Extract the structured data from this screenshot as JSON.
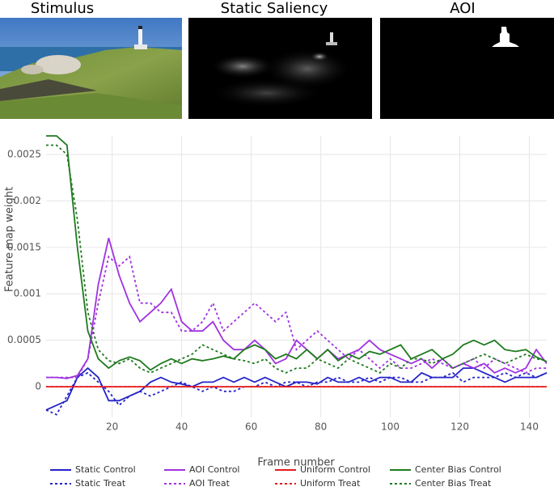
{
  "panels": [
    {
      "title": "Stimulus"
    },
    {
      "title": "Static Saliency"
    },
    {
      "title": "AOI"
    }
  ],
  "chart_data": {
    "type": "line",
    "x_label": "Frame number",
    "y_label": "Feature map weight",
    "xlim": [
      1,
      145
    ],
    "ylim": [
      -0.00033,
      0.0027
    ],
    "xticks": [
      20,
      40,
      60,
      80,
      100,
      120,
      140
    ],
    "yticks": [
      0,
      0.0005,
      0.001,
      0.0015,
      0.002,
      0.0025
    ],
    "grid": true,
    "x": [
      1,
      4,
      7,
      10,
      13,
      16,
      19,
      22,
      25,
      28,
      31,
      34,
      37,
      40,
      43,
      46,
      49,
      52,
      55,
      58,
      61,
      64,
      67,
      70,
      73,
      76,
      79,
      82,
      85,
      88,
      91,
      94,
      97,
      100,
      103,
      106,
      109,
      112,
      115,
      118,
      121,
      124,
      127,
      130,
      133,
      136,
      139,
      142,
      145
    ],
    "series": [
      {
        "name": "Static Control",
        "color": "#2424c8",
        "style": "solid",
        "values": [
          -0.00025,
          -0.0002,
          -0.00015,
          0.0001,
          0.0002,
          0.0001,
          -0.00015,
          -0.00015,
          -0.0001,
          -5e-05,
          5e-05,
          0.0001,
          5e-05,
          3e-05,
          0,
          5e-05,
          5e-05,
          0.0001,
          5e-05,
          0.0001,
          5e-05,
          0.0001,
          5e-05,
          0,
          5e-05,
          5e-05,
          3e-05,
          0.0001,
          5e-05,
          5e-05,
          0.0001,
          5e-05,
          0.0001,
          0.0001,
          5e-05,
          5e-05,
          0.00015,
          0.0001,
          0.0001,
          0.0001,
          0.0002,
          0.0002,
          0.00015,
          0.0001,
          5e-05,
          0.0001,
          0.0001,
          0.0001,
          0.00015
        ]
      },
      {
        "name": "Static Treat",
        "color": "#2424c8",
        "style": "dotted",
        "values": [
          -0.00025,
          -0.0003,
          -0.0001,
          0.0001,
          0.00015,
          5e-05,
          -5e-05,
          -0.0002,
          -0.0001,
          -5e-05,
          -0.0001,
          -5e-05,
          0,
          5e-05,
          0,
          -5e-05,
          0,
          -5e-05,
          -5e-05,
          0,
          0,
          5e-05,
          0,
          5e-05,
          5e-05,
          0,
          5e-05,
          5e-05,
          0.0001,
          5e-05,
          5e-05,
          0.0001,
          5e-05,
          0.0001,
          0.0001,
          5e-05,
          5e-05,
          0.0001,
          0.0001,
          0.00015,
          5e-05,
          0.0001,
          0.0001,
          0.0001,
          0.00015,
          0.0001,
          0.00015,
          0.0001,
          0.00015
        ]
      },
      {
        "name": "AOI Control",
        "color": "#a032e0",
        "style": "solid",
        "values": [
          0.0001,
          0.0001,
          9e-05,
          0.00012,
          0.0003,
          0.0011,
          0.0016,
          0.0012,
          0.0009,
          0.0007,
          0.0008,
          0.0009,
          0.00105,
          0.0007,
          0.0006,
          0.0006,
          0.0007,
          0.0005,
          0.0004,
          0.0004,
          0.0005,
          0.0004,
          0.00025,
          0.0003,
          0.0005,
          0.0004,
          0.0003,
          0.0004,
          0.0003,
          0.00035,
          0.0004,
          0.0005,
          0.0004,
          0.00035,
          0.0003,
          0.00025,
          0.0003,
          0.0002,
          0.0003,
          0.0002,
          0.00025,
          0.0002,
          0.00025,
          0.00015,
          0.0002,
          0.00015,
          0.0002,
          0.0004,
          0.00025
        ]
      },
      {
        "name": "AOI Treat",
        "color": "#a032e0",
        "style": "dotted",
        "values": [
          0.0001,
          0.0001,
          0.0001,
          0.0001,
          0.0003,
          0.0009,
          0.0014,
          0.0013,
          0.0014,
          0.0009,
          0.0009,
          0.0008,
          0.0008,
          0.0006,
          0.0006,
          0.0007,
          0.0009,
          0.0006,
          0.0007,
          0.0008,
          0.0009,
          0.0008,
          0.0007,
          0.0008,
          0.0004,
          0.0005,
          0.0006,
          0.0005,
          0.0004,
          0.0003,
          0.0004,
          0.0003,
          0.0002,
          0.0003,
          0.0002,
          0.0002,
          0.00025,
          0.0003,
          0.00025,
          0.0002,
          0.00025,
          0.0003,
          0.0002,
          0.0003,
          0.00025,
          0.0002,
          0.00015,
          0.0002,
          0.0002
        ]
      },
      {
        "name": "Uniform Control",
        "color": "#e41a1c",
        "style": "solid",
        "values": [
          0,
          0,
          0,
          0,
          0,
          0,
          0,
          0,
          0,
          0,
          0,
          0,
          0,
          0,
          0,
          0,
          0,
          0,
          0,
          0,
          0,
          0,
          0,
          0,
          0,
          0,
          0,
          0,
          0,
          0,
          0,
          0,
          0,
          0,
          0,
          0,
          0,
          0,
          0,
          0,
          0,
          0,
          0,
          0,
          0,
          0,
          0,
          0,
          0
        ]
      },
      {
        "name": "Uniform Treat",
        "color": "#e41a1c",
        "style": "dotted",
        "values": [
          0,
          0,
          0,
          0,
          0,
          0,
          0,
          0,
          0,
          0,
          0,
          0,
          0,
          0,
          0,
          0,
          0,
          0,
          0,
          0,
          0,
          0,
          0,
          0,
          0,
          0,
          0,
          0,
          0,
          0,
          0,
          0,
          0,
          0,
          0,
          0,
          0,
          0,
          0,
          0,
          0,
          0,
          0,
          0,
          0,
          0,
          0,
          0,
          0
        ]
      },
      {
        "name": "Center Bias Control",
        "color": "#1e7a1e",
        "style": "solid",
        "values": [
          0.0027,
          0.0027,
          0.0026,
          0.0015,
          0.0006,
          0.0003,
          0.0002,
          0.00028,
          0.00032,
          0.00028,
          0.00018,
          0.00025,
          0.0003,
          0.00025,
          0.0003,
          0.00028,
          0.0003,
          0.00033,
          0.0003,
          0.0004,
          0.00045,
          0.0004,
          0.0003,
          0.00035,
          0.0003,
          0.0004,
          0.0003,
          0.0004,
          0.00028,
          0.00035,
          0.0003,
          0.00038,
          0.00035,
          0.0004,
          0.00045,
          0.0003,
          0.00035,
          0.0004,
          0.0003,
          0.00035,
          0.00045,
          0.0005,
          0.00045,
          0.0005,
          0.0004,
          0.00038,
          0.0004,
          0.00032,
          0.00027
        ]
      },
      {
        "name": "Center Bias Treat",
        "color": "#1e7a1e",
        "style": "dotted",
        "values": [
          0.0026,
          0.0026,
          0.0025,
          0.0018,
          0.0008,
          0.0004,
          0.00028,
          0.00025,
          0.0003,
          0.0002,
          0.00015,
          0.0002,
          0.00025,
          0.0003,
          0.00035,
          0.00045,
          0.0004,
          0.00035,
          0.0003,
          0.00028,
          0.00025,
          0.0003,
          0.0002,
          0.00015,
          0.0002,
          0.0002,
          0.0003,
          0.00025,
          0.0002,
          0.0003,
          0.00025,
          0.0002,
          0.00015,
          0.00025,
          0.0002,
          0.0003,
          0.0003,
          0.00025,
          0.0003,
          0.0002,
          0.00025,
          0.0003,
          0.00035,
          0.0003,
          0.00025,
          0.0003,
          0.00035,
          0.0003,
          0.00028
        ]
      }
    ]
  }
}
